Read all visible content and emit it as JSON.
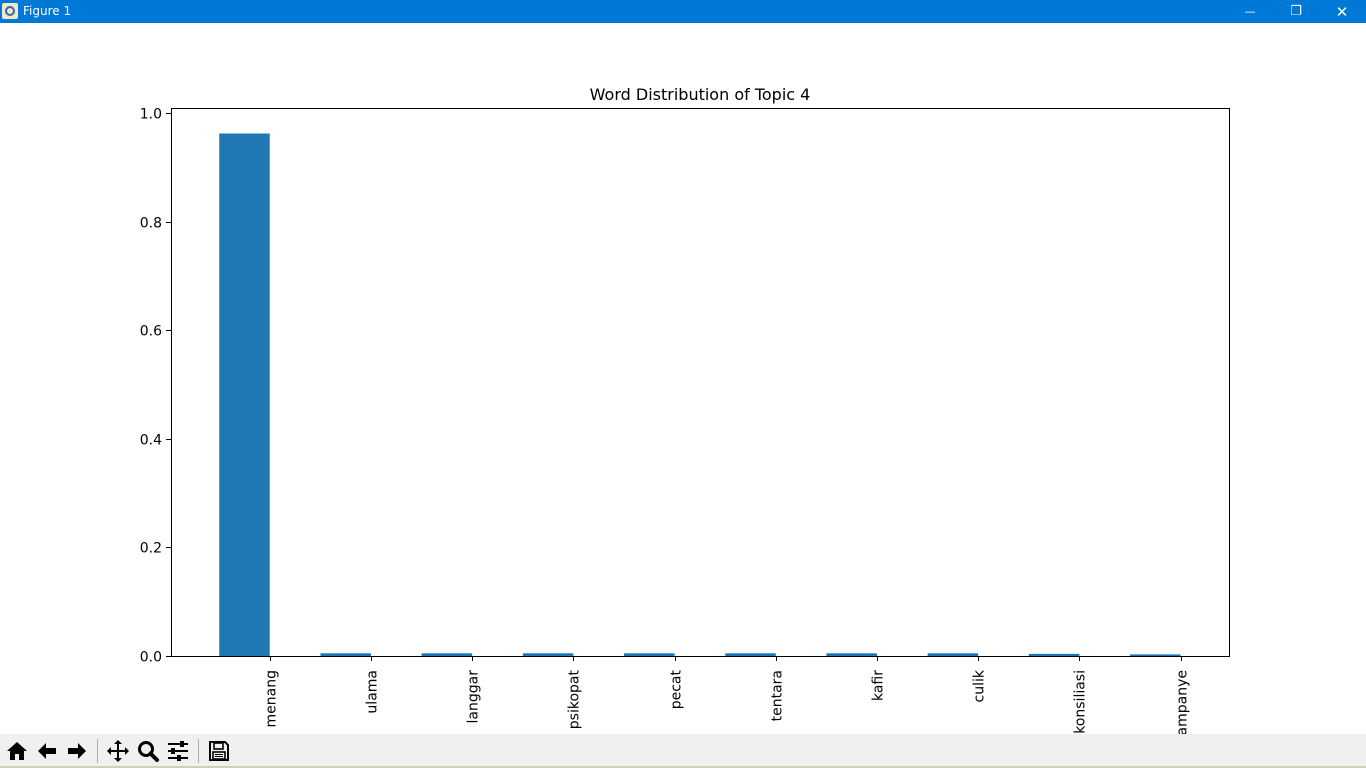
{
  "window": {
    "title": "Figure 1",
    "minimize_glyph": "—",
    "restore_glyph": "❐",
    "close_glyph": "✕"
  },
  "toolbar": {
    "buttons": [
      {
        "name": "home-button",
        "icon": "home-icon"
      },
      {
        "name": "back-button",
        "icon": "arrow-left-icon"
      },
      {
        "name": "forward-button",
        "icon": "arrow-right-icon"
      },
      {
        "name": "pan-button",
        "icon": "move-icon"
      },
      {
        "name": "zoom-button",
        "icon": "magnifier-icon"
      },
      {
        "name": "configure-subplots-button",
        "icon": "sliders-icon"
      },
      {
        "name": "save-button",
        "icon": "floppy-disk-icon"
      }
    ]
  },
  "chart_data": {
    "type": "bar",
    "title": "Word Distribution of Topic 4",
    "xlabel": "",
    "ylabel": "",
    "categories": [
      "menang",
      "ulama",
      "langgar",
      "psikopat",
      "pecat",
      "tentara",
      "kafir",
      "culik",
      "konsiliasi",
      "kampanye"
    ],
    "values": [
      0.963,
      0.005,
      0.005,
      0.005,
      0.005,
      0.005,
      0.005,
      0.005,
      0.004,
      0.003
    ],
    "ylim": [
      0.0,
      1.01
    ],
    "yticks": [
      0.0,
      0.2,
      0.4,
      0.6,
      0.8,
      1.0
    ],
    "ytick_labels": [
      "0.0",
      "0.2",
      "0.4",
      "0.6",
      "0.8",
      "1.0"
    ],
    "bar_color": "#1f77b4",
    "grid": false
  }
}
